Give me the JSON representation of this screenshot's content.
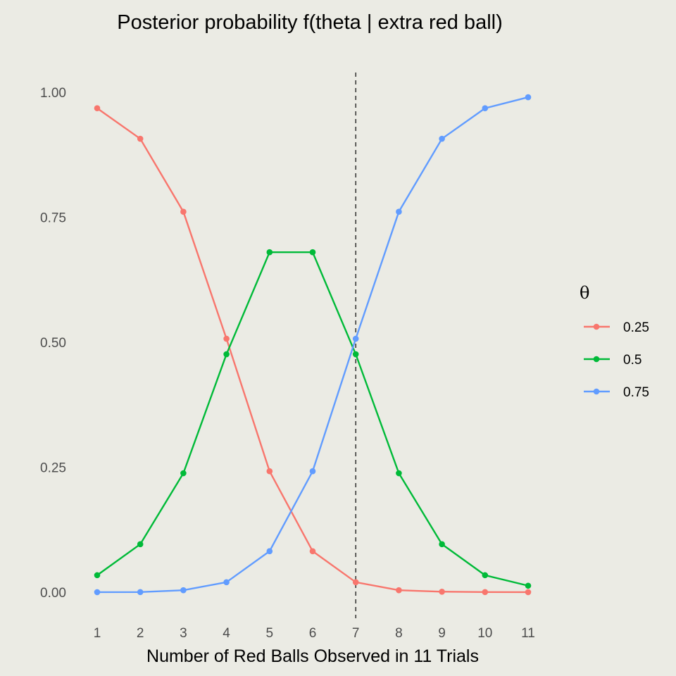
{
  "chart_data": {
    "type": "line",
    "title": "Posterior probability f(theta | extra red ball)",
    "xlabel": "Number of Red Balls Observed in 11 Trials",
    "ylabel": "",
    "x": [
      1,
      2,
      3,
      4,
      5,
      6,
      7,
      8,
      9,
      10,
      11
    ],
    "xlim": [
      1,
      11
    ],
    "ylim": [
      0,
      1
    ],
    "x_ticks": [
      "1",
      "2",
      "3",
      "4",
      "5",
      "6",
      "7",
      "8",
      "9",
      "10",
      "11"
    ],
    "y_ticks": [
      "0.00",
      "0.25",
      "0.50",
      "0.75",
      "1.00"
    ],
    "y_tick_values": [
      0,
      0.25,
      0.5,
      0.75,
      1.0
    ],
    "vline": {
      "x": 7,
      "style": "dashed"
    },
    "legend": {
      "title": "θ",
      "position": "right"
    },
    "series": [
      {
        "name": "0.25",
        "color": "#F8766D",
        "values": [
          0.968,
          0.907,
          0.761,
          0.507,
          0.242,
          0.082,
          0.02,
          0.004,
          0.001,
          0.0003,
          0.0001
        ]
      },
      {
        "name": "0.5",
        "color": "#00BA38",
        "values": [
          0.034,
          0.096,
          0.238,
          0.476,
          0.68,
          0.68,
          0.476,
          0.238,
          0.096,
          0.034,
          0.013
        ]
      },
      {
        "name": "0.75",
        "color": "#619CFF",
        "values": [
          0.0001,
          0.0003,
          0.004,
          0.02,
          0.082,
          0.242,
          0.507,
          0.761,
          0.907,
          0.968,
          0.99
        ]
      }
    ],
    "grid": false
  }
}
